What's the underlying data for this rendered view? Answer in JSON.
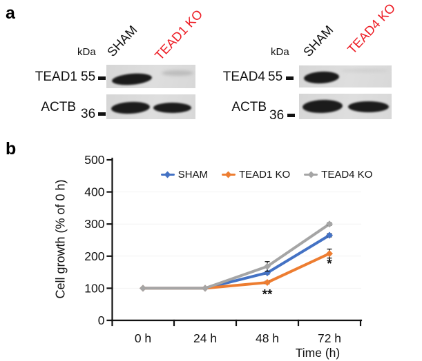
{
  "panel_a": {
    "label": "a",
    "blots": [
      {
        "kda": "kDa",
        "lane_labels": [
          {
            "text": "SHAM",
            "color": "#111111"
          },
          {
            "text": "TEAD1 KO",
            "color": "#ed1c24"
          }
        ],
        "rows": [
          {
            "protein": "TEAD1",
            "mw": "55",
            "bands": [
              "strong",
              "faint"
            ]
          },
          {
            "protein": "ACTB",
            "mw": "36",
            "bands": [
              "strong",
              "strong"
            ]
          }
        ]
      },
      {
        "kda": "kDa",
        "lane_labels": [
          {
            "text": "SHAM",
            "color": "#111111"
          },
          {
            "text": "TEAD4 KO",
            "color": "#ed1c24"
          }
        ],
        "rows": [
          {
            "protein": "TEAD4",
            "mw": "55",
            "bands": [
              "strong",
              "trace"
            ]
          },
          {
            "protein": "ACTB",
            "mw": "36",
            "bands": [
              "strong",
              "strong"
            ]
          }
        ]
      }
    ]
  },
  "panel_b": {
    "label": "b"
  },
  "chart_data": {
    "type": "line",
    "title": "",
    "xlabel": "Time (h)",
    "ylabel": "Cell growth (% of 0 h)",
    "categories": [
      "0 h",
      "24 h",
      "48 h",
      "72 h"
    ],
    "ylim": [
      0,
      500
    ],
    "ytick_step": 100,
    "grid": "faint horizontal gridlines every 100",
    "legend_position": "top",
    "marker": "diamond",
    "series": [
      {
        "name": "SHAM",
        "color": "#4472c4",
        "values": [
          100,
          100,
          148,
          265
        ],
        "errors": [
          0,
          0,
          4,
          5
        ]
      },
      {
        "name": "TEAD1 KO",
        "color": "#ed7d31",
        "values": [
          100,
          100,
          118,
          208
        ],
        "errors": [
          0,
          0,
          4,
          14
        ]
      },
      {
        "name": "TEAD4 KO",
        "color": "#a5a5a5",
        "values": [
          100,
          100,
          168,
          300
        ],
        "errors": [
          0,
          0,
          15,
          4
        ]
      }
    ],
    "annotations": [
      {
        "text": "**",
        "x_index": 2,
        "value": 68,
        "series": "TEAD1 KO"
      },
      {
        "text": "*",
        "x_index": 3,
        "value": 163,
        "series": "TEAD1 KO"
      }
    ]
  }
}
